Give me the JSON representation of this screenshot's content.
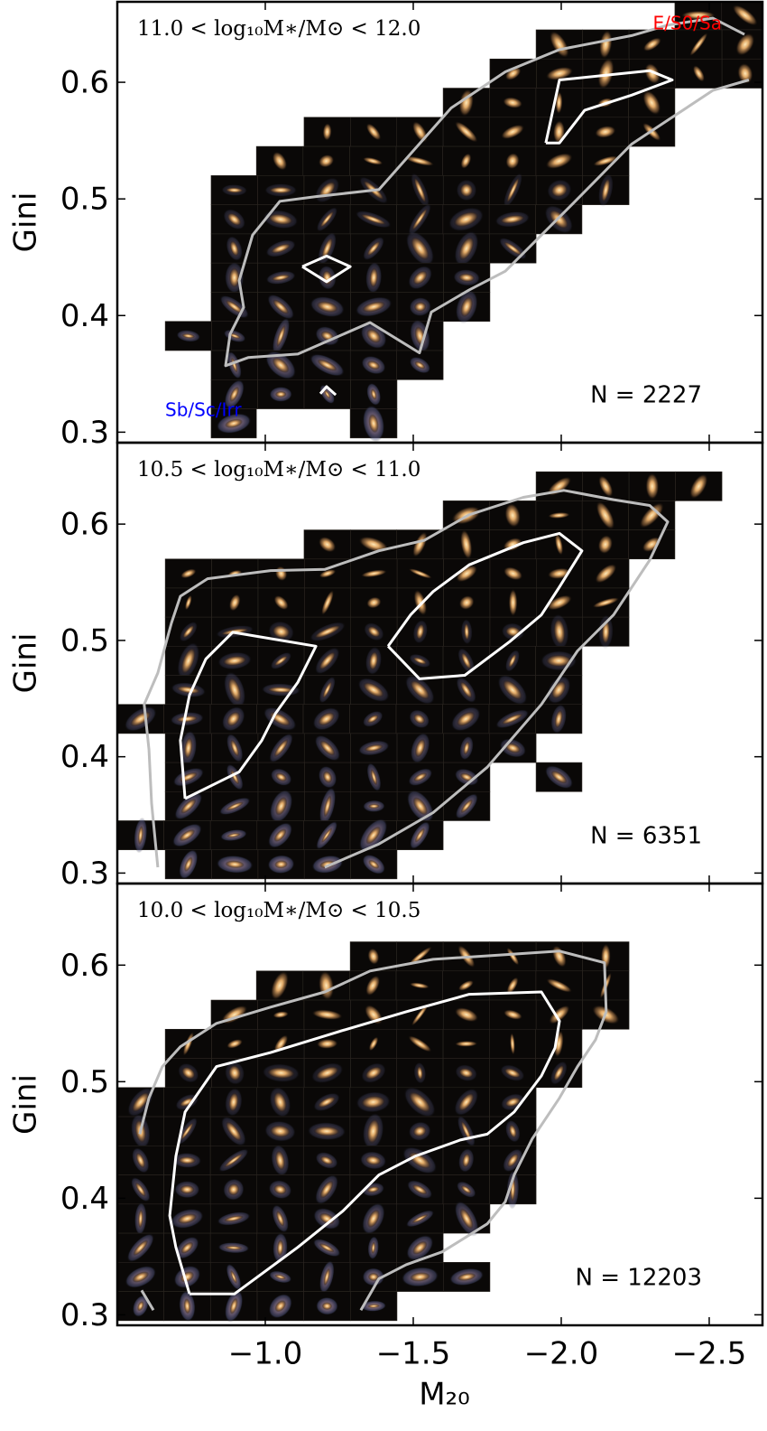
{
  "chart_data": [
    {
      "type": "mosaic",
      "annotation": "11.0 < log₁₀M∗/M⊙ < 12.0",
      "n_label": "N = 2227",
      "ylabel": "Gini",
      "xlim": [
        -0.5,
        -2.68
      ],
      "ylim": [
        0.291,
        0.669
      ],
      "xticks": [
        {
          "value": -1.0,
          "label": "−1.0"
        },
        {
          "value": -1.5,
          "label": "−1.5"
        },
        {
          "value": -2.0,
          "label": "−2.0"
        },
        {
          "value": -2.5,
          "label": "−2.5"
        }
      ],
      "yticks": [
        0.3,
        0.4,
        0.5,
        0.6
      ],
      "class_labels": [
        {
          "text": "E/S0/Sa",
          "color": "red",
          "corner": "upper right"
        },
        {
          "text": "Sb/Sc/Irr",
          "color": "blue",
          "corner": "lower left"
        }
      ],
      "tiles": [
        {
          "gini": [
            0.645,
            0.67
          ],
          "m20": [
            -2.384,
            -2.7
          ]
        },
        {
          "gini": [
            0.62,
            0.645
          ],
          "m20": [
            -1.915,
            -2.7
          ]
        },
        {
          "gini": [
            0.595,
            0.62
          ],
          "m20": [
            -1.759,
            -2.7
          ]
        },
        {
          "gini": [
            0.57,
            0.595
          ],
          "m20": [
            -1.601,
            -2.384
          ]
        },
        {
          "gini": [
            0.545,
            0.57
          ],
          "m20": [
            -1.131,
            -2.384
          ]
        },
        {
          "gini": [
            0.52,
            0.545
          ],
          "m20": [
            -0.97,
            -2.229
          ]
        },
        {
          "gini": [
            0.495,
            0.52
          ],
          "m20": [
            -0.817,
            -2.229
          ]
        },
        {
          "gini": [
            0.47,
            0.495
          ],
          "m20": [
            -0.817,
            -2.07
          ]
        },
        {
          "gini": [
            0.445,
            0.47
          ],
          "m20": [
            -0.817,
            -1.915
          ]
        },
        {
          "gini": [
            0.42,
            0.445
          ],
          "m20": [
            -0.817,
            -1.759
          ]
        },
        {
          "gini": [
            0.395,
            0.42
          ],
          "m20": [
            -0.817,
            -1.759
          ]
        },
        {
          "gini": [
            0.37,
            0.395
          ],
          "m20": [
            -0.662,
            -1.601
          ]
        },
        {
          "gini": [
            0.345,
            0.37
          ],
          "m20": [
            -0.817,
            -1.601
          ]
        },
        {
          "gini": [
            0.32,
            0.345
          ],
          "m20": [
            -0.817,
            -1.445
          ]
        },
        {
          "gini": [
            0.295,
            0.32
          ],
          "m20": [
            -0.817,
            -0.97
          ]
        },
        {
          "gini": [
            0.295,
            0.32
          ],
          "m20": [
            -1.287,
            -1.445
          ]
        }
      ],
      "contours": [
        {
          "color": "#bdbdbd",
          "x": [
            -2.634,
            -2.512,
            -2.375,
            -2.238,
            -2.055,
            -1.933,
            -1.811,
            -1.689,
            -1.561,
            -1.521,
            -1.354,
            -1.11,
            -0.942,
            -0.866,
            -0.881,
            -0.927,
            -0.912,
            -0.957,
            -1.049,
            -1.171,
            -1.384,
            -1.506,
            -1.628,
            -1.811,
            -1.994,
            -2.238,
            -2.36,
            -2.512,
            -2.619
          ],
          "y": [
            0.602,
            0.593,
            0.57,
            0.547,
            0.5,
            0.469,
            0.438,
            0.422,
            0.403,
            0.368,
            0.394,
            0.367,
            0.364,
            0.357,
            0.384,
            0.407,
            0.43,
            0.469,
            0.498,
            0.502,
            0.508,
            0.543,
            0.578,
            0.609,
            0.628,
            0.64,
            0.649,
            0.655,
            0.641
          ]
        },
        {
          "color": "#ffffff",
          "x": [
            -1.948,
            -1.994,
            -2.079,
            -2.238,
            -2.375,
            -2.299,
            -1.994,
            -1.948
          ],
          "y": [
            0.548,
            0.548,
            0.576,
            0.589,
            0.602,
            0.61,
            0.602,
            0.548
          ]
        },
        {
          "color": "#ffffff",
          "x": [
            -1.125,
            -1.207,
            -1.287,
            -1.207,
            -1.125
          ],
          "y": [
            0.442,
            0.451,
            0.442,
            0.429,
            0.442
          ]
        },
        {
          "color": "#ffffff",
          "x": [
            -1.186,
            -1.207,
            -1.238
          ],
          "y": [
            0.333,
            0.339,
            0.332
          ]
        }
      ]
    },
    {
      "type": "mosaic",
      "annotation": "10.5 < log₁₀M∗/M⊙ < 11.0",
      "n_label": "N = 6351",
      "ylabel": "Gini",
      "xlim": [
        -0.5,
        -2.68
      ],
      "ylim": [
        0.291,
        0.67
      ],
      "xticks": [
        {
          "value": -1.0,
          "label": "−1.0"
        },
        {
          "value": -1.5,
          "label": "−1.5"
        },
        {
          "value": -2.0,
          "label": "−2.0"
        },
        {
          "value": -2.5,
          "label": "−2.5"
        }
      ],
      "yticks": [
        0.3,
        0.4,
        0.5,
        0.6
      ],
      "tiles": [
        {
          "gini": [
            0.62,
            0.645
          ],
          "m20": [
            -1.915,
            -2.543
          ]
        },
        {
          "gini": [
            0.595,
            0.62
          ],
          "m20": [
            -1.601,
            -2.384
          ]
        },
        {
          "gini": [
            0.57,
            0.595
          ],
          "m20": [
            -1.131,
            -2.384
          ]
        },
        {
          "gini": [
            0.545,
            0.57
          ],
          "m20": [
            -0.662,
            -2.229
          ]
        },
        {
          "gini": [
            0.52,
            0.545
          ],
          "m20": [
            -0.662,
            -2.229
          ]
        },
        {
          "gini": [
            0.495,
            0.52
          ],
          "m20": [
            -0.662,
            -2.229
          ]
        },
        {
          "gini": [
            0.47,
            0.495
          ],
          "m20": [
            -0.662,
            -2.07
          ]
        },
        {
          "gini": [
            0.445,
            0.47
          ],
          "m20": [
            -0.662,
            -2.07
          ]
        },
        {
          "gini": [
            0.42,
            0.445
          ],
          "m20": [
            -0.5,
            -2.07
          ]
        },
        {
          "gini": [
            0.395,
            0.42
          ],
          "m20": [
            -0.662,
            -1.915
          ]
        },
        {
          "gini": [
            0.37,
            0.395
          ],
          "m20": [
            -0.662,
            -1.759
          ]
        },
        {
          "gini": [
            0.37,
            0.395
          ],
          "m20": [
            -1.915,
            -2.07
          ]
        },
        {
          "gini": [
            0.345,
            0.37
          ],
          "m20": [
            -0.662,
            -1.759
          ]
        },
        {
          "gini": [
            0.32,
            0.345
          ],
          "m20": [
            -0.5,
            -1.601
          ]
        },
        {
          "gini": [
            0.295,
            0.32
          ],
          "m20": [
            -0.662,
            -1.445
          ]
        }
      ],
      "contours": [
        {
          "color": "#bdbdbd",
          "x": [
            -0.637,
            -0.616,
            -0.607,
            -0.591,
            -0.637,
            -0.683,
            -0.713,
            -0.805,
            -1.018,
            -1.201,
            -1.384,
            -1.537,
            -1.689,
            -1.872,
            -2.009,
            -2.177,
            -2.299,
            -2.36,
            -2.299,
            -2.177,
            -2.055,
            -1.933,
            -1.75,
            -1.567,
            -1.384,
            -1.201
          ],
          "y": [
            0.305,
            0.36,
            0.406,
            0.445,
            0.472,
            0.515,
            0.538,
            0.553,
            0.56,
            0.561,
            0.577,
            0.586,
            0.608,
            0.623,
            0.629,
            0.621,
            0.616,
            0.602,
            0.569,
            0.522,
            0.491,
            0.445,
            0.391,
            0.352,
            0.325,
            0.305
          ]
        },
        {
          "color": "#ffffff",
          "x": [
            -0.729,
            -0.713,
            -0.744,
            -0.799,
            -0.89,
            -1.171,
            -1.11,
            -1.034,
            -0.988,
            -0.912,
            -0.729
          ],
          "y": [
            0.364,
            0.414,
            0.453,
            0.484,
            0.507,
            0.495,
            0.464,
            0.437,
            0.414,
            0.387,
            0.364
          ]
        },
        {
          "color": "#ffffff",
          "x": [
            -1.415,
            -1.491,
            -1.567,
            -1.689,
            -1.872,
            -1.994,
            -2.07,
            -1.994,
            -1.933,
            -1.826,
            -1.674,
            -1.521,
            -1.415
          ],
          "y": [
            0.495,
            0.522,
            0.542,
            0.565,
            0.584,
            0.592,
            0.577,
            0.546,
            0.522,
            0.499,
            0.47,
            0.467,
            0.495
          ]
        }
      ]
    },
    {
      "type": "mosaic",
      "annotation": "10.0 < log₁₀M∗/M⊙ < 10.5",
      "n_label": "N = 12203",
      "ylabel": "Gini",
      "xlabel": "M₂₀",
      "xlim": [
        -0.5,
        -2.68
      ],
      "ylim": [
        0.291,
        0.67
      ],
      "xticks": [
        {
          "value": -1.0,
          "label": "−1.0"
        },
        {
          "value": -1.5,
          "label": "−1.5"
        },
        {
          "value": -2.0,
          "label": "−2.0"
        },
        {
          "value": -2.5,
          "label": "−2.5"
        }
      ],
      "yticks": [
        0.3,
        0.4,
        0.5,
        0.6
      ],
      "tiles": [
        {
          "gini": [
            0.595,
            0.62
          ],
          "m20": [
            -1.287,
            -2.229
          ]
        },
        {
          "gini": [
            0.57,
            0.595
          ],
          "m20": [
            -0.97,
            -2.229
          ]
        },
        {
          "gini": [
            0.545,
            0.57
          ],
          "m20": [
            -0.817,
            -2.229
          ]
        },
        {
          "gini": [
            0.52,
            0.545
          ],
          "m20": [
            -0.662,
            -2.07
          ]
        },
        {
          "gini": [
            0.495,
            0.52
          ],
          "m20": [
            -0.662,
            -2.07
          ]
        },
        {
          "gini": [
            0.47,
            0.495
          ],
          "m20": [
            -0.5,
            -1.915
          ]
        },
        {
          "gini": [
            0.445,
            0.47
          ],
          "m20": [
            -0.5,
            -1.915
          ]
        },
        {
          "gini": [
            0.42,
            0.445
          ],
          "m20": [
            -0.5,
            -1.915
          ]
        },
        {
          "gini": [
            0.395,
            0.42
          ],
          "m20": [
            -0.5,
            -1.915
          ]
        },
        {
          "gini": [
            0.37,
            0.395
          ],
          "m20": [
            -0.5,
            -1.759
          ]
        },
        {
          "gini": [
            0.345,
            0.37
          ],
          "m20": [
            -0.5,
            -1.601
          ]
        },
        {
          "gini": [
            0.32,
            0.345
          ],
          "m20": [
            -0.5,
            -1.759
          ]
        },
        {
          "gini": [
            0.295,
            0.32
          ],
          "m20": [
            -0.5,
            -1.445
          ]
        }
      ],
      "contours": [
        {
          "color": "#bdbdbd",
          "x": [
            -0.576,
            -0.607,
            -0.652,
            -0.713,
            -0.835,
            -1.018,
            -1.201,
            -1.354,
            -1.567,
            -1.811,
            -1.994,
            -2.146,
            -2.152,
            -2.116,
            -2.055,
            -1.994,
            -1.902,
            -1.841,
            -1.811,
            -1.75,
            -1.598,
            -1.476,
            -1.384,
            -1.323
          ],
          "y": [
            0.455,
            0.486,
            0.513,
            0.53,
            0.55,
            0.564,
            0.577,
            0.595,
            0.605,
            0.609,
            0.612,
            0.602,
            0.56,
            0.536,
            0.513,
            0.486,
            0.451,
            0.42,
            0.397,
            0.378,
            0.354,
            0.343,
            0.331,
            0.304
          ]
        },
        {
          "color": "#bdbdbd",
          "x": [
            -0.582,
            -0.622
          ],
          "y": [
            0.321,
            0.304
          ]
        },
        {
          "color": "#ffffff",
          "x": [
            -0.744,
            -0.698,
            -0.677,
            -0.698,
            -0.729,
            -0.835,
            -1.018,
            -1.262,
            -1.476,
            -1.689,
            -1.933,
            -1.994,
            -1.979,
            -1.933,
            -1.841,
            -1.75,
            -1.659,
            -1.506,
            -1.384,
            -1.262,
            -1.11,
            -0.896,
            -0.744
          ],
          "y": [
            0.318,
            0.358,
            0.385,
            0.436,
            0.474,
            0.513,
            0.525,
            0.544,
            0.56,
            0.575,
            0.577,
            0.552,
            0.529,
            0.505,
            0.474,
            0.455,
            0.45,
            0.436,
            0.42,
            0.389,
            0.358,
            0.318,
            0.318
          ]
        }
      ]
    }
  ]
}
